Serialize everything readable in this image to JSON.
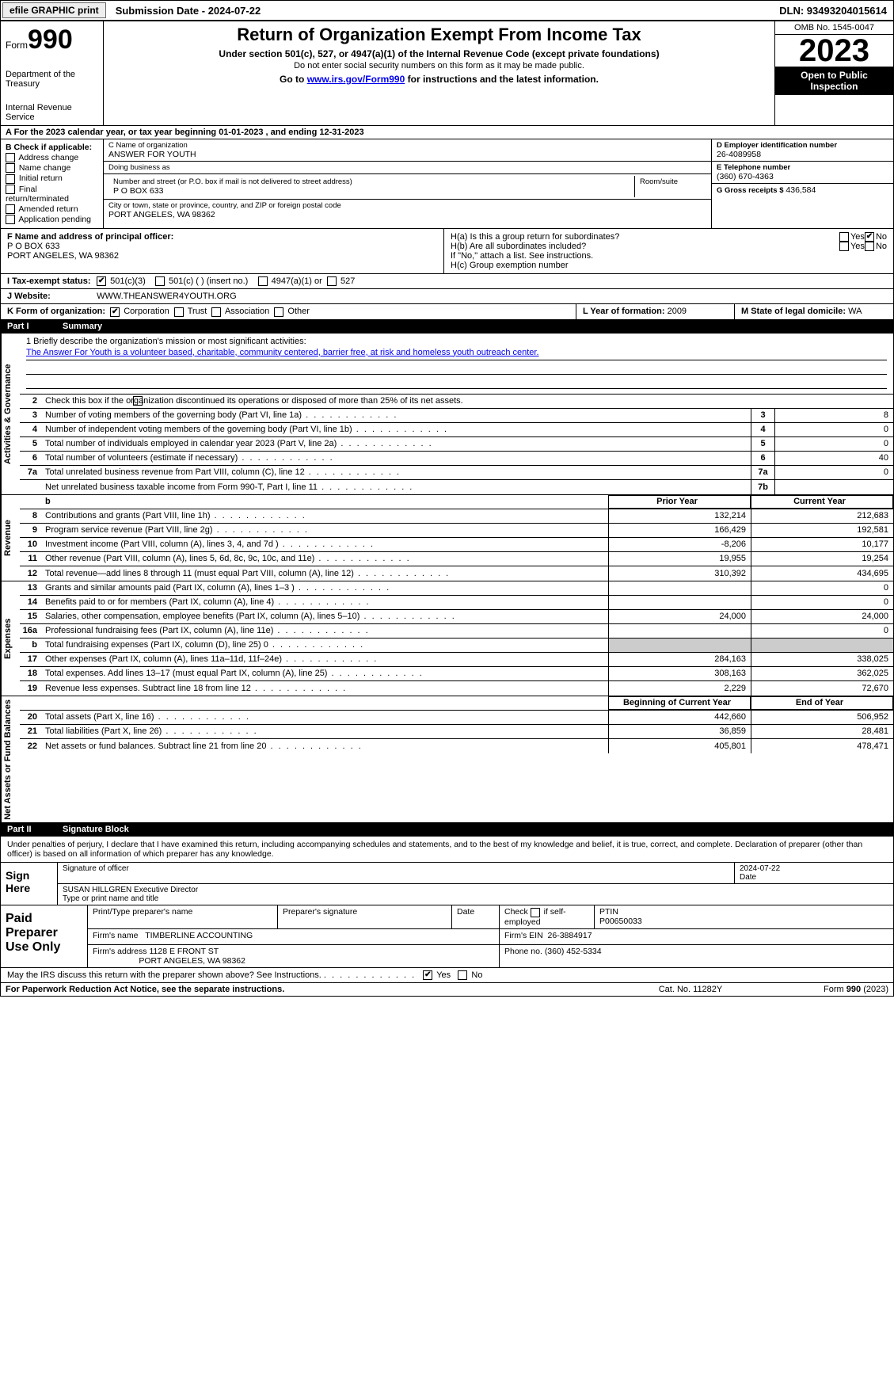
{
  "topbar": {
    "efile": "efile GRAPHIC print",
    "submission": "Submission Date - 2024-07-22",
    "dln": "DLN: 93493204015614"
  },
  "header": {
    "form_label": "Form",
    "form_number": "990",
    "dept": "Department of the Treasury",
    "irs": "Internal Revenue Service",
    "title": "Return of Organization Exempt From Income Tax",
    "sub": "Under section 501(c), 527, or 4947(a)(1) of the Internal Revenue Code (except private foundations)",
    "sub2": "Do not enter social security numbers on this form as it may be made public.",
    "goto_pre": "Go to ",
    "goto_link": "www.irs.gov/Form990",
    "goto_post": " for instructions and the latest information.",
    "omb": "OMB No. 1545-0047",
    "year": "2023",
    "open": "Open to Public Inspection"
  },
  "row_a": "A For the 2023 calendar year, or tax year beginning 01-01-2023   , and ending 12-31-2023",
  "col_b": {
    "label": "B Check if applicable:",
    "options": [
      "Address change",
      "Name change",
      "Initial return",
      "Final return/terminated",
      "Amended return",
      "Application pending"
    ]
  },
  "col_c": {
    "name_label": "C Name of organization",
    "name": "ANSWER FOR YOUTH",
    "dba_label": "Doing business as",
    "dba": "",
    "street_label": "Number and street (or P.O. box if mail is not delivered to street address)",
    "room_label": "Room/suite",
    "street": "P O BOX 633",
    "city_label": "City or town, state or province, country, and ZIP or foreign postal code",
    "city": "PORT ANGELES, WA   98362"
  },
  "col_d": {
    "ein_label": "D Employer identification number",
    "ein": "26-4089958",
    "phone_label": "E Telephone number",
    "phone": "(360) 670-4363",
    "gross_label": "G Gross receipts $",
    "gross": "436,584"
  },
  "row_f": {
    "label": "F  Name and address of principal officer:",
    "name": "",
    "addr1": "P O BOX 633",
    "addr2": "PORT ANGELES, WA   98362",
    "ha": "H(a)  Is this a group return for subordinates?",
    "hb": "H(b)  Are all subordinates included?",
    "hb_note": "If \"No,\" attach a list. See instructions.",
    "hc": "H(c)  Group exemption number",
    "yes": "Yes",
    "no": "No"
  },
  "row_i": {
    "label": "I   Tax-exempt status:",
    "o1": "501(c)(3)",
    "o2": "501(c) (  ) (insert no.)",
    "o3": "4947(a)(1) or",
    "o4": "527"
  },
  "row_j": {
    "label": "J   Website:",
    "value": "WWW.THEANSWER4YOUTH.ORG"
  },
  "row_k": {
    "label": "K Form of organization:",
    "o1": "Corporation",
    "o2": "Trust",
    "o3": "Association",
    "o4": "Other",
    "l_label": "L Year of formation:",
    "l_val": "2009",
    "m_label": "M State of legal domicile:",
    "m_val": "WA"
  },
  "part1": {
    "part": "Part I",
    "title": "Summary"
  },
  "mission": {
    "q": "1   Briefly describe the organization's mission or most significant activities:",
    "text": "The Answer For Youth is a volunteer based, charitable, community centered, barrier free, at risk and homeless youth outreach center."
  },
  "gov": {
    "label": "Activities & Governance",
    "l2": "Check this box        if the organization discontinued its operations or disposed of more than 25% of its net assets.",
    "rows": [
      {
        "n": "3",
        "t": "Number of voting members of the governing body (Part VI, line 1a)",
        "b": "3",
        "v": "8"
      },
      {
        "n": "4",
        "t": "Number of independent voting members of the governing body (Part VI, line 1b)",
        "b": "4",
        "v": "0"
      },
      {
        "n": "5",
        "t": "Total number of individuals employed in calendar year 2023 (Part V, line 2a)",
        "b": "5",
        "v": "0"
      },
      {
        "n": "6",
        "t": "Total number of volunteers (estimate if necessary)",
        "b": "6",
        "v": "40"
      },
      {
        "n": "7a",
        "t": "Total unrelated business revenue from Part VIII, column (C), line 12",
        "b": "7a",
        "v": "0"
      },
      {
        "n": "",
        "t": "Net unrelated business taxable income from Form 990-T, Part I, line 11",
        "b": "7b",
        "v": ""
      }
    ]
  },
  "rev": {
    "label": "Revenue",
    "hdr_prior": "Prior Year",
    "hdr_curr": "Current Year",
    "rows": [
      {
        "n": "8",
        "t": "Contributions and grants (Part VIII, line 1h)",
        "p": "132,214",
        "c": "212,683"
      },
      {
        "n": "9",
        "t": "Program service revenue (Part VIII, line 2g)",
        "p": "166,429",
        "c": "192,581"
      },
      {
        "n": "10",
        "t": "Investment income (Part VIII, column (A), lines 3, 4, and 7d )",
        "p": "-8,206",
        "c": "10,177"
      },
      {
        "n": "11",
        "t": "Other revenue (Part VIII, column (A), lines 5, 6d, 8c, 9c, 10c, and 11e)",
        "p": "19,955",
        "c": "19,254"
      },
      {
        "n": "12",
        "t": "Total revenue—add lines 8 through 11 (must equal Part VIII, column (A), line 12)",
        "p": "310,392",
        "c": "434,695"
      }
    ]
  },
  "exp": {
    "label": "Expenses",
    "rows": [
      {
        "n": "13",
        "t": "Grants and similar amounts paid (Part IX, column (A), lines 1–3 )",
        "p": "",
        "c": "0"
      },
      {
        "n": "14",
        "t": "Benefits paid to or for members (Part IX, column (A), line 4)",
        "p": "",
        "c": "0"
      },
      {
        "n": "15",
        "t": "Salaries, other compensation, employee benefits (Part IX, column (A), lines 5–10)",
        "p": "24,000",
        "c": "24,000"
      },
      {
        "n": "16a",
        "t": "Professional fundraising fees (Part IX, column (A), line 11e)",
        "p": "",
        "c": "0"
      },
      {
        "n": "b",
        "t": "Total fundraising expenses (Part IX, column (D), line 25) 0",
        "p": "shade",
        "c": "shade"
      },
      {
        "n": "17",
        "t": "Other expenses (Part IX, column (A), lines 11a–11d, 11f–24e)",
        "p": "284,163",
        "c": "338,025"
      },
      {
        "n": "18",
        "t": "Total expenses. Add lines 13–17 (must equal Part IX, column (A), line 25)",
        "p": "308,163",
        "c": "362,025"
      },
      {
        "n": "19",
        "t": "Revenue less expenses. Subtract line 18 from line 12",
        "p": "2,229",
        "c": "72,670"
      }
    ]
  },
  "net": {
    "label": "Net Assets or Fund Balances",
    "hdr_beg": "Beginning of Current Year",
    "hdr_end": "End of Year",
    "rows": [
      {
        "n": "20",
        "t": "Total assets (Part X, line 16)",
        "p": "442,660",
        "c": "506,952"
      },
      {
        "n": "21",
        "t": "Total liabilities (Part X, line 26)",
        "p": "36,859",
        "c": "28,481"
      },
      {
        "n": "22",
        "t": "Net assets or fund balances. Subtract line 21 from line 20",
        "p": "405,801",
        "c": "478,471"
      }
    ]
  },
  "part2": {
    "part": "Part II",
    "title": "Signature Block"
  },
  "penalty": "Under penalties of perjury, I declare that I have examined this return, including accompanying schedules and statements, and to the best of my knowledge and belief, it is true, correct, and complete. Declaration of preparer (other than officer) is based on all information of which preparer has any knowledge.",
  "sign": {
    "label": "Sign Here",
    "sig_label": "Signature of officer",
    "date_label": "Date",
    "date": "2024-07-22",
    "name": "SUSAN HILLGREN  Executive Director",
    "name_label": "Type or print name and title"
  },
  "prep": {
    "label": "Paid Preparer Use Only",
    "h1": "Print/Type preparer's name",
    "h2": "Preparer's signature",
    "h3": "Date",
    "h4_pre": "Check",
    "h4_post": "if self-employed",
    "h5": "PTIN",
    "ptin": "P00650033",
    "firm_label": "Firm's name",
    "firm": "TIMBERLINE ACCOUNTING",
    "ein_label": "Firm's EIN",
    "ein": "26-3884917",
    "addr_label": "Firm's address",
    "addr1": "1128 E FRONT ST",
    "addr2": "PORT ANGELES, WA   98362",
    "phone_label": "Phone no.",
    "phone": "(360) 452-5334"
  },
  "discuss": {
    "q": "May the IRS discuss this return with the preparer shown above? See Instructions.",
    "yes": "Yes",
    "no": "No"
  },
  "footer": {
    "l": "For Paperwork Reduction Act Notice, see the separate instructions.",
    "c": "Cat. No. 11282Y",
    "r": "Form 990 (2023)"
  },
  "colors": {
    "link": "#0000ee",
    "black": "#000000",
    "shade": "#cccccc"
  }
}
